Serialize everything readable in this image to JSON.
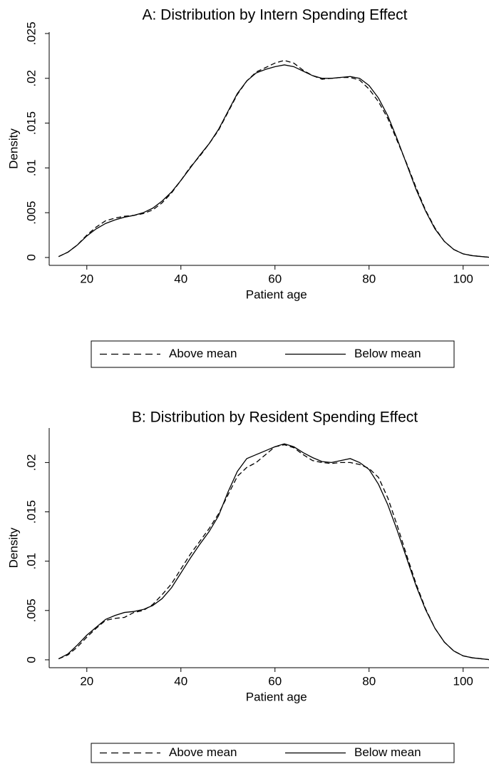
{
  "chart_data": [
    {
      "type": "line",
      "title": "A: Distribution by Intern Spending Effect",
      "x_label": "Patient age",
      "y_label": "Density",
      "x": [
        14,
        16,
        18,
        20,
        22,
        24,
        26,
        28,
        30,
        32,
        34,
        36,
        38,
        40,
        42,
        44,
        46,
        48,
        50,
        52,
        54,
        56,
        58,
        60,
        62,
        64,
        66,
        68,
        70,
        72,
        74,
        76,
        78,
        80,
        82,
        84,
        86,
        88,
        90,
        92,
        94,
        96,
        98,
        100,
        102,
        104,
        106
      ],
      "series": [
        {
          "name": "Above mean",
          "color": "#000000",
          "linestyle": "dashed",
          "values": [
            0.0001,
            0.0006,
            0.0014,
            0.0025,
            0.0034,
            0.0041,
            0.0044,
            0.0046,
            0.0047,
            0.0049,
            0.0053,
            0.0061,
            0.0072,
            0.0086,
            0.0101,
            0.0113,
            0.0127,
            0.0142,
            0.0162,
            0.0182,
            0.0197,
            0.0207,
            0.0212,
            0.0217,
            0.022,
            0.0217,
            0.0209,
            0.0203,
            0.0199,
            0.02,
            0.0201,
            0.0201,
            0.0198,
            0.0188,
            0.0174,
            0.0155,
            0.013,
            0.0105,
            0.0078,
            0.0053,
            0.0033,
            0.0018,
            0.0009,
            0.0004,
            0.0002,
            0.0001,
            0.0
          ]
        },
        {
          "name": "Below mean",
          "color": "#000000",
          "linestyle": "solid",
          "values": [
            0.0001,
            0.0006,
            0.0014,
            0.0024,
            0.0032,
            0.0038,
            0.0042,
            0.0045,
            0.0047,
            0.005,
            0.0055,
            0.0063,
            0.0073,
            0.0086,
            0.01,
            0.0114,
            0.0127,
            0.0143,
            0.0163,
            0.0183,
            0.0197,
            0.0206,
            0.021,
            0.0213,
            0.0215,
            0.0213,
            0.0208,
            0.0203,
            0.02,
            0.02,
            0.0201,
            0.0202,
            0.02,
            0.0192,
            0.0178,
            0.0158,
            0.0132,
            0.0104,
            0.0076,
            0.0052,
            0.0032,
            0.0018,
            0.0009,
            0.0004,
            0.0002,
            0.0001,
            0.0
          ]
        }
      ],
      "xlim": [
        12,
        105.5
      ],
      "xticks": [
        20,
        40,
        60,
        80,
        100
      ],
      "ylim": [
        -0.00088,
        0.02516
      ],
      "yticks": [
        0,
        {
          "value": 0.005,
          "label": ".005"
        },
        {
          "value": 0.01,
          "label": ".01"
        },
        {
          "value": 0.015,
          "label": ".015"
        },
        {
          "value": 0.02,
          "label": ".02"
        },
        {
          "value": 0.025,
          "label": ".025"
        }
      ]
    },
    {
      "type": "line",
      "title": "B: Distribution by Resident Spending Effect",
      "x_label": "Patient age",
      "y_label": "Density",
      "x": [
        14,
        16,
        18,
        20,
        22,
        24,
        26,
        28,
        30,
        32,
        34,
        36,
        38,
        40,
        42,
        44,
        46,
        48,
        50,
        52,
        54,
        56,
        58,
        60,
        62,
        64,
        66,
        68,
        70,
        72,
        74,
        76,
        78,
        80,
        82,
        84,
        86,
        88,
        90,
        92,
        94,
        96,
        98,
        100,
        102,
        104,
        106
      ],
      "series": [
        {
          "name": "Above mean",
          "color": "#000000",
          "linestyle": "dashed",
          "values": [
            0.0001,
            0.0005,
            0.0013,
            0.0023,
            0.0032,
            0.004,
            0.0042,
            0.0043,
            0.0048,
            0.005,
            0.0056,
            0.0066,
            0.0077,
            0.0092,
            0.0107,
            0.012,
            0.0133,
            0.0148,
            0.0167,
            0.0186,
            0.0195,
            0.02,
            0.0208,
            0.0216,
            0.0218,
            0.0215,
            0.0208,
            0.0202,
            0.02,
            0.0199,
            0.02,
            0.02,
            0.0198,
            0.0194,
            0.0185,
            0.0164,
            0.0136,
            0.0106,
            0.0077,
            0.0052,
            0.0032,
            0.0018,
            0.0009,
            0.0004,
            0.0002,
            0.0001,
            0.0
          ]
        },
        {
          "name": "Below mean",
          "color": "#000000",
          "linestyle": "solid",
          "values": [
            0.0001,
            0.0006,
            0.0015,
            0.0025,
            0.0033,
            0.0041,
            0.0045,
            0.0048,
            0.0049,
            0.0051,
            0.0055,
            0.0062,
            0.0073,
            0.0088,
            0.0103,
            0.0117,
            0.013,
            0.0146,
            0.017,
            0.0191,
            0.0204,
            0.0208,
            0.0212,
            0.0216,
            0.0219,
            0.0216,
            0.021,
            0.0205,
            0.0201,
            0.02,
            0.0202,
            0.0204,
            0.02,
            0.0193,
            0.0178,
            0.0157,
            0.0131,
            0.0103,
            0.0075,
            0.0051,
            0.0032,
            0.0018,
            0.0009,
            0.0004,
            0.0002,
            0.0001,
            0.0
          ]
        }
      ],
      "xlim": [
        12,
        105.5
      ],
      "xticks": [
        20,
        40,
        60,
        80,
        100
      ],
      "ylim": [
        -0.0008,
        0.0235
      ],
      "yticks": [
        0,
        {
          "value": 0.005,
          "label": ".005"
        },
        {
          "value": 0.01,
          "label": ".01"
        },
        {
          "value": 0.015,
          "label": ".015"
        },
        {
          "value": 0.02,
          "label": ".02"
        }
      ]
    }
  ]
}
